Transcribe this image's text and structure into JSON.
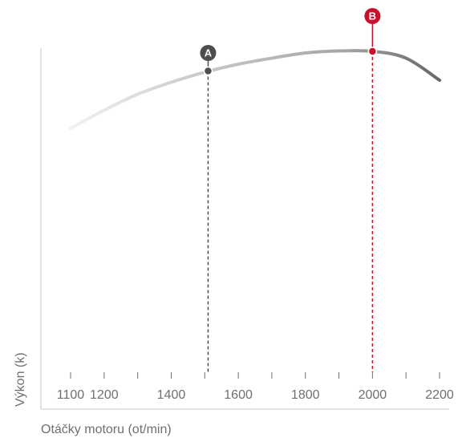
{
  "chart_data": {
    "type": "line",
    "title": "",
    "xlabel": "Otáčky motoru (ot/min)",
    "ylabel": "Výkon (k)",
    "x_ticks": [
      1100,
      1200,
      1400,
      1600,
      1800,
      2000,
      2200
    ],
    "x_minor_ticks": [
      1100,
      1200,
      1300,
      1400,
      1500,
      1600,
      1700,
      1800,
      1900,
      2000,
      2100,
      2200
    ],
    "xlim": [
      1100,
      2200
    ],
    "ylim": [
      0,
      100
    ],
    "grid": false,
    "series": [
      {
        "x": [
          1100,
          1200,
          1300,
          1400,
          1500,
          1600,
          1700,
          1800,
          1900,
          2000,
          2100,
          2200
        ],
        "values": [
          70,
          74.5,
          78.5,
          81.5,
          84,
          86,
          87.5,
          88.8,
          89.3,
          89.2,
          87.5,
          82
        ]
      }
    ],
    "markers": [
      {
        "label": "A",
        "x": 1510,
        "y": 84.3,
        "color": "#4d4d4d"
      },
      {
        "label": "B",
        "x": 2000,
        "y": 89.2,
        "color": "#c8102e"
      }
    ],
    "colors": {
      "curve_start": "#f0f0f0",
      "curve_mid": "#c8c8c8",
      "curve_end": "#666666",
      "axis": "#bdbdbd",
      "text": "#6f6f6f",
      "marker_a": "#4d4d4d",
      "marker_b": "#c8102e"
    }
  }
}
